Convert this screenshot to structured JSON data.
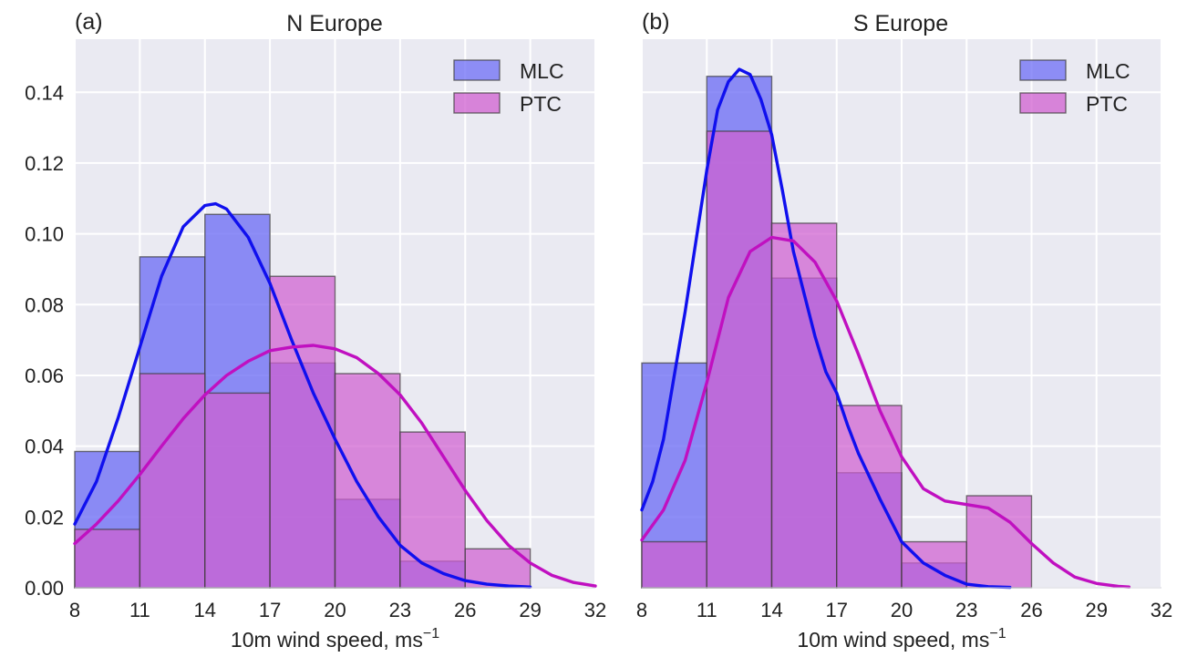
{
  "chart_data": [
    {
      "type": "bar",
      "panel_label": "(a)",
      "title": "N Europe",
      "xlabel": "10m wind speed, ms",
      "xlabel_superscript": "−1",
      "xlim": [
        8,
        32
      ],
      "ylim": [
        0,
        0.155
      ],
      "xticks": [
        "8",
        "11",
        "14",
        "17",
        "20",
        "23",
        "26",
        "29",
        "32"
      ],
      "yticks": [
        "0.00",
        "0.02",
        "0.04",
        "0.06",
        "0.08",
        "0.10",
        "0.12",
        "0.14"
      ],
      "grid": true,
      "legend_position": "top-right",
      "bin_edges": [
        8,
        11,
        14,
        17,
        20,
        23,
        26,
        29
      ],
      "series": [
        {
          "name": "MLC",
          "color": "#6e6ef5",
          "line_color": "#1010ee",
          "values": [
            0.0385,
            0.0935,
            0.1055,
            0.0635,
            0.025,
            0.0075,
            0
          ],
          "kde": [
            [
              8,
              0.018
            ],
            [
              9,
              0.03
            ],
            [
              10,
              0.048
            ],
            [
              11,
              0.068
            ],
            [
              12,
              0.088
            ],
            [
              13,
              0.102
            ],
            [
              14,
              0.108
            ],
            [
              14.5,
              0.1085
            ],
            [
              15,
              0.107
            ],
            [
              16,
              0.099
            ],
            [
              17,
              0.086
            ],
            [
              18,
              0.07
            ],
            [
              19,
              0.055
            ],
            [
              20,
              0.042
            ],
            [
              21,
              0.03
            ],
            [
              22,
              0.02
            ],
            [
              23,
              0.012
            ],
            [
              24,
              0.007
            ],
            [
              25,
              0.004
            ],
            [
              26,
              0.002
            ],
            [
              27,
              0.001
            ],
            [
              28,
              0.0005
            ],
            [
              29,
              0.0002
            ]
          ]
        },
        {
          "name": "PTC",
          "color": "#d060d0",
          "line_color": "#c010c0",
          "values": [
            0.0165,
            0.0605,
            0.055,
            0.088,
            0.0605,
            0.044,
            0.011
          ],
          "kde": [
            [
              8,
              0.0125
            ],
            [
              9,
              0.018
            ],
            [
              10,
              0.0245
            ],
            [
              11,
              0.032
            ],
            [
              12,
              0.04
            ],
            [
              13,
              0.0478
            ],
            [
              14,
              0.0545
            ],
            [
              15,
              0.06
            ],
            [
              16,
              0.064
            ],
            [
              17,
              0.067
            ],
            [
              18,
              0.068
            ],
            [
              19,
              0.0685
            ],
            [
              20,
              0.0675
            ],
            [
              21,
              0.065
            ],
            [
              22,
              0.0605
            ],
            [
              23,
              0.0545
            ],
            [
              24,
              0.0465
            ],
            [
              25,
              0.037
            ],
            [
              26,
              0.0275
            ],
            [
              27,
              0.019
            ],
            [
              28,
              0.012
            ],
            [
              29,
              0.007
            ],
            [
              30,
              0.0035
            ],
            [
              31,
              0.0015
            ],
            [
              32,
              0.0005
            ]
          ]
        }
      ]
    },
    {
      "type": "bar",
      "panel_label": "(b)",
      "title": "S Europe",
      "xlabel": "10m wind speed, ms",
      "xlabel_superscript": "−1",
      "xlim": [
        8,
        32
      ],
      "ylim": [
        0,
        0.155
      ],
      "xticks": [
        "8",
        "11",
        "14",
        "17",
        "20",
        "23",
        "26",
        "29",
        "32"
      ],
      "yticks": [
        "0.00",
        "0.02",
        "0.04",
        "0.06",
        "0.08",
        "0.10",
        "0.12",
        "0.14"
      ],
      "grid": true,
      "legend_position": "top-right",
      "bin_edges": [
        8,
        11,
        14,
        17,
        20,
        23,
        26
      ],
      "series": [
        {
          "name": "MLC",
          "color": "#6e6ef5",
          "line_color": "#1010ee",
          "values": [
            0.0635,
            0.1445,
            0.0875,
            0.0325,
            0.007,
            0
          ],
          "kde": [
            [
              8,
              0.022
            ],
            [
              8.5,
              0.03
            ],
            [
              9,
              0.042
            ],
            [
              9.5,
              0.06
            ],
            [
              10,
              0.078
            ],
            [
              10.5,
              0.098
            ],
            [
              11,
              0.118
            ],
            [
              11.5,
              0.135
            ],
            [
              12,
              0.143
            ],
            [
              12.5,
              0.1465
            ],
            [
              13,
              0.145
            ],
            [
              13.5,
              0.138
            ],
            [
              14,
              0.128
            ],
            [
              14.5,
              0.112
            ],
            [
              15,
              0.095
            ],
            [
              15.5,
              0.083
            ],
            [
              16,
              0.071
            ],
            [
              16.5,
              0.061
            ],
            [
              17,
              0.055
            ],
            [
              17.5,
              0.046
            ],
            [
              18,
              0.038
            ],
            [
              19,
              0.025
            ],
            [
              20,
              0.013
            ],
            [
              21,
              0.007
            ],
            [
              22,
              0.0035
            ],
            [
              23,
              0.001
            ],
            [
              24,
              0.0003
            ],
            [
              25,
              0.0001
            ]
          ]
        },
        {
          "name": "PTC",
          "color": "#d060d0",
          "line_color": "#c010c0",
          "values": [
            0.013,
            0.129,
            0.103,
            0.0515,
            0.013,
            0.026
          ],
          "kde": [
            [
              8,
              0.0135
            ],
            [
              9,
              0.022
            ],
            [
              10,
              0.036
            ],
            [
              11,
              0.058
            ],
            [
              12,
              0.082
            ],
            [
              13,
              0.095
            ],
            [
              14,
              0.099
            ],
            [
              15,
              0.098
            ],
            [
              16,
              0.092
            ],
            [
              17,
              0.081
            ],
            [
              18,
              0.066
            ],
            [
              19,
              0.05
            ],
            [
              20,
              0.037
            ],
            [
              21,
              0.028
            ],
            [
              22,
              0.0245
            ],
            [
              23,
              0.0235
            ],
            [
              24,
              0.0225
            ],
            [
              25,
              0.0185
            ],
            [
              26,
              0.0125
            ],
            [
              27,
              0.007
            ],
            [
              28,
              0.003
            ],
            [
              29,
              0.0012
            ],
            [
              30,
              0.0004
            ],
            [
              30.5,
              0.0002
            ]
          ]
        }
      ]
    }
  ]
}
